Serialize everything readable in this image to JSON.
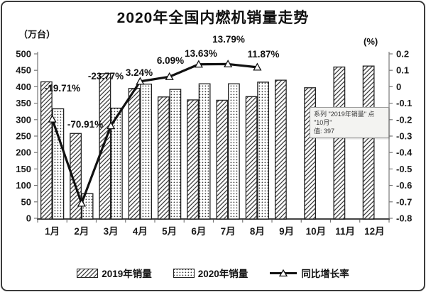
{
  "title": "2020年全国内燃机销量走势",
  "axes": {
    "left_unit": "（万台）",
    "right_unit": "(%)",
    "left_ticks": [
      "500",
      "450",
      "400",
      "350",
      "300",
      "250",
      "200",
      "150",
      "100",
      "50",
      "0"
    ],
    "right_ticks": [
      "0.2",
      "0.1",
      "0",
      "-0.1",
      "-0.2",
      "-0.3",
      "-0.4",
      "-0.5",
      "-0.6",
      "-0.7",
      "-0.8"
    ]
  },
  "tooltip": {
    "line1": "系列 \"2019年销量\" 点 \"10月\"",
    "line2": "值: 397"
  },
  "legend": [
    {
      "label": "2019年销量",
      "swatch": "diagonal-hatch"
    },
    {
      "label": "2020年销量",
      "swatch": "dots"
    },
    {
      "label": "同比增长率",
      "swatch": "line-triangle"
    }
  ],
  "chart_data": {
    "type": "bar",
    "subtype": "combo-bar-line",
    "title": "2020年全国内燃机销量走势",
    "categories": [
      "1月",
      "2月",
      "3月",
      "4月",
      "5月",
      "6月",
      "7月",
      "8月",
      "9月",
      "10月",
      "11月",
      "12月"
    ],
    "series": [
      {
        "name": "2019年销量",
        "type": "bar",
        "axis": "left",
        "pattern": "diagonal-hatch",
        "values": [
          415,
          258,
          440,
          395,
          369,
          360,
          359,
          370,
          420,
          397,
          460,
          463
        ]
      },
      {
        "name": "2020年销量",
        "type": "bar",
        "axis": "left",
        "pattern": "dots",
        "values": [
          333,
          75,
          335,
          408,
          392,
          409,
          409,
          414,
          null,
          null,
          null,
          null
        ]
      },
      {
        "name": "同比增长率",
        "type": "line",
        "axis": "right",
        "marker": "open-triangle",
        "values_percent": [
          -19.71,
          -70.91,
          -23.77,
          3.24,
          6.09,
          13.63,
          13.79,
          11.87,
          null,
          null,
          null,
          null
        ]
      }
    ],
    "point_labels": [
      "-19.71%",
      "-70.91%",
      "-23.77%",
      "3.24%",
      "6.09%",
      "13.63%",
      "13.79%",
      "11.87%"
    ],
    "left_axis": {
      "min": 0,
      "max": 500,
      "step": 50,
      "unit": "万台"
    },
    "right_axis": {
      "min": -0.8,
      "max": 0.2,
      "step": 0.1,
      "unit": "%"
    },
    "gridlines": false,
    "legend_position": "bottom"
  }
}
